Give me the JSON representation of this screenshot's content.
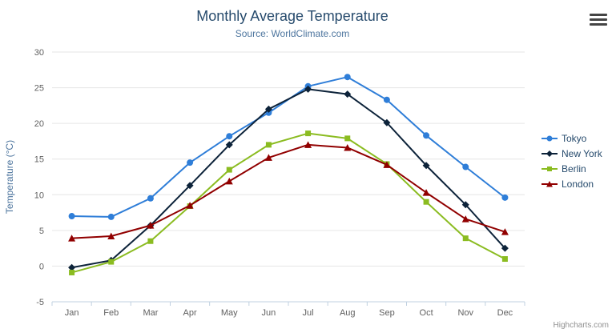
{
  "credits": "Highcharts.com",
  "export_menu": {
    "icon": "hamburger"
  },
  "chart_data": {
    "type": "line",
    "title": "Monthly Average Temperature",
    "subtitle": "Source: WorldClimate.com",
    "categories": [
      "Jan",
      "Feb",
      "Mar",
      "Apr",
      "May",
      "Jun",
      "Jul",
      "Aug",
      "Sep",
      "Oct",
      "Nov",
      "Dec"
    ],
    "xlabel": "",
    "ylabel": "Temperature (°C)",
    "ylim": [
      -5,
      30
    ],
    "ytick_step": 5,
    "grid": true,
    "legend_position": "right",
    "series": [
      {
        "name": "Tokyo",
        "color": "#2f7ed8",
        "marker": "circle",
        "values": [
          7.0,
          6.9,
          9.5,
          14.5,
          18.2,
          21.5,
          25.2,
          26.5,
          23.3,
          18.3,
          13.9,
          9.6
        ]
      },
      {
        "name": "New York",
        "color": "#0d233a",
        "marker": "diamond",
        "values": [
          -0.2,
          0.8,
          5.7,
          11.3,
          17.0,
          22.0,
          24.8,
          24.1,
          20.1,
          14.1,
          8.6,
          2.5
        ]
      },
      {
        "name": "Berlin",
        "color": "#8bbc21",
        "marker": "square",
        "values": [
          -0.9,
          0.6,
          3.5,
          8.4,
          13.5,
          17.0,
          18.6,
          17.9,
          14.3,
          9.0,
          3.9,
          1.0
        ]
      },
      {
        "name": "London",
        "color": "#910000",
        "marker": "triangle",
        "values": [
          3.9,
          4.2,
          5.7,
          8.5,
          11.9,
          15.2,
          17.0,
          16.6,
          14.2,
          10.3,
          6.6,
          4.8
        ]
      }
    ]
  }
}
